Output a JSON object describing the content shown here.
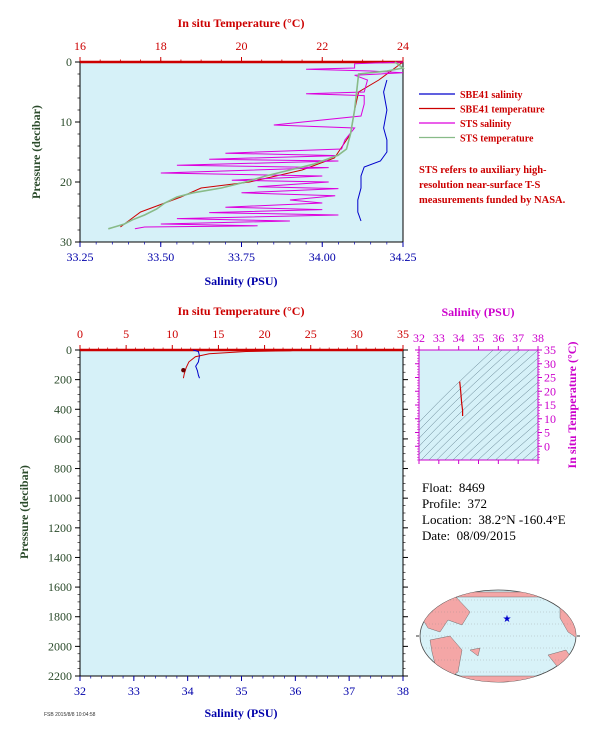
{
  "chart_data": [
    {
      "type": "line",
      "panel": "upper-profile",
      "title": "",
      "xlabel_top": "In situ Temperature (°C)",
      "xlabel_bottom": "Salinity (PSU)",
      "ylabel": "Pressure (decibar)",
      "temp_range": [
        16,
        24
      ],
      "sal_range": [
        33.25,
        34.25
      ],
      "pressure_range": [
        0,
        30
      ],
      "temp_ticks": [
        "16",
        "18",
        "20",
        "22",
        "24"
      ],
      "sal_ticks": [
        "33.25",
        "33.50",
        "33.75",
        "34.00",
        "34.25"
      ],
      "pressure_ticks": [
        "0",
        "10",
        "20",
        "30"
      ],
      "series": [
        {
          "name": "SBE41 salinity",
          "color": "#0000cc",
          "axis": "salinity",
          "points": [
            [
              34.2,
              3
            ],
            [
              34.19,
              5
            ],
            [
              34.2,
              8
            ],
            [
              34.19,
              11
            ],
            [
              34.2,
              13
            ],
            [
              34.2,
              15
            ],
            [
              34.18,
              16.5
            ],
            [
              34.13,
              17.5
            ],
            [
              34.12,
              19
            ],
            [
              34.12,
              21
            ],
            [
              34.11,
              23
            ],
            [
              34.11,
              25
            ],
            [
              34.12,
              26.5
            ]
          ]
        },
        {
          "name": "SBE41 temperature",
          "color": "#cc0000",
          "axis": "temperature",
          "points": [
            [
              24,
              0
            ],
            [
              23.4,
              3
            ],
            [
              22.9,
              5
            ],
            [
              22.8,
              8
            ],
            [
              22.7,
              12
            ],
            [
              22.3,
              16
            ],
            [
              21.5,
              18
            ],
            [
              20.2,
              20
            ],
            [
              19,
              21
            ],
            [
              18.5,
              22.5
            ],
            [
              17.5,
              25
            ],
            [
              17.2,
              26.5
            ],
            [
              17,
              27.5
            ]
          ]
        },
        {
          "name": "STS salinity",
          "color": "#dd00dd",
          "axis": "salinity",
          "points": [
            [
              34.25,
              0
            ],
            [
              34.1,
              0.3
            ],
            [
              34.1,
              1
            ],
            [
              33.95,
              1.2
            ],
            [
              34.15,
              1.5
            ],
            [
              34.25,
              1.8
            ],
            [
              34.1,
              2.2
            ],
            [
              34.14,
              3
            ],
            [
              34.13,
              5
            ],
            [
              33.95,
              5.3
            ],
            [
              34.13,
              5.6
            ],
            [
              34.13,
              7
            ],
            [
              34.12,
              9
            ],
            [
              33.85,
              10.5
            ],
            [
              34.1,
              11
            ],
            [
              34.07,
              13
            ],
            [
              34.06,
              14.5
            ],
            [
              33.7,
              15.2
            ],
            [
              34.05,
              15.6
            ],
            [
              33.65,
              16.2
            ],
            [
              34.05,
              16.5
            ],
            [
              33.55,
              17.2
            ],
            [
              34.02,
              17.6
            ],
            [
              33.5,
              18.5
            ],
            [
              34.0,
              19
            ],
            [
              33.72,
              19.7
            ],
            [
              34.02,
              20
            ],
            [
              33.8,
              20.8
            ],
            [
              34.05,
              21.1
            ],
            [
              33.75,
              21.8
            ],
            [
              34.04,
              22.3
            ],
            [
              33.9,
              23
            ],
            [
              34.0,
              23.5
            ],
            [
              33.7,
              24.2
            ],
            [
              34.0,
              24.6
            ],
            [
              33.65,
              25.1
            ],
            [
              34.05,
              25.5
            ],
            [
              33.55,
              26.1
            ],
            [
              33.9,
              26.5
            ],
            [
              33.5,
              27
            ],
            [
              33.8,
              27.3
            ],
            [
              33.45,
              27.5
            ],
            [
              33.42,
              27.8
            ]
          ]
        },
        {
          "name": "STS temperature",
          "color": "#88bb88",
          "axis": "temperature",
          "points": [
            [
              23.8,
              0
            ],
            [
              24,
              1
            ],
            [
              23.6,
              1.5
            ],
            [
              22.9,
              2
            ],
            [
              22.85,
              5
            ],
            [
              22.8,
              8
            ],
            [
              22.7,
              12
            ],
            [
              22.6,
              14.5
            ],
            [
              22.4,
              15.5
            ],
            [
              21.8,
              17
            ],
            [
              21.2,
              18
            ],
            [
              20.6,
              19
            ],
            [
              20.1,
              20
            ],
            [
              19.5,
              21
            ],
            [
              18.8,
              21.8
            ],
            [
              18.4,
              22.5
            ],
            [
              18.1,
              23.5
            ],
            [
              17.9,
              24.5
            ],
            [
              17.6,
              25.5
            ],
            [
              17.3,
              26.3
            ],
            [
              17.1,
              27
            ],
            [
              16.8,
              27.6
            ],
            [
              16.7,
              27.8
            ]
          ]
        }
      ],
      "legend": [
        "SBE41 salinity",
        "SBE41 temperature",
        "STS salinity",
        "STS temperature"
      ],
      "legend_placement": "right",
      "annotation": "STS refers to auxiliary high-resolution near-surface T-S measurements funded by NASA."
    },
    {
      "type": "line",
      "panel": "lower-profile",
      "title": "",
      "xlabel_top": "In situ Temperature (°C)",
      "xlabel_bottom": "Salinity (PSU)",
      "ylabel": "Pressure (decibar)",
      "temp_range": [
        0,
        35
      ],
      "sal_range": [
        32,
        38
      ],
      "pressure_range": [
        0,
        2200
      ],
      "temp_ticks": [
        "0",
        "5",
        "10",
        "15",
        "20",
        "25",
        "30",
        "35"
      ],
      "sal_ticks": [
        "32",
        "33",
        "34",
        "35",
        "36",
        "37",
        "38"
      ],
      "pressure_ticks": [
        "0",
        "200",
        "400",
        "600",
        "800",
        "1000",
        "1200",
        "1400",
        "1600",
        "1800",
        "2000",
        "2200"
      ],
      "series": [
        {
          "name": "salinity",
          "color": "#0000cc",
          "axis": "salinity",
          "points": [
            [
              34.1,
              0
            ],
            [
              34.2,
              10
            ],
            [
              34.22,
              40
            ],
            [
              34.2,
              80
            ],
            [
              34.15,
              110
            ],
            [
              34.18,
              140
            ],
            [
              34.2,
              170
            ],
            [
              34.22,
              190
            ]
          ]
        },
        {
          "name": "temperature",
          "color": "#cc0000",
          "axis": "temperature",
          "points": [
            [
              23.5,
              0
            ],
            [
              22.8,
              5
            ],
            [
              18,
              10
            ],
            [
              14,
              25
            ],
            [
              12.5,
              45
            ],
            [
              11.8,
              80
            ],
            [
              11.5,
              120
            ],
            [
              11.3,
              160
            ],
            [
              11.2,
              190
            ]
          ]
        }
      ]
    },
    {
      "type": "scatter",
      "panel": "t-s-diagram",
      "xlabel": "Salinity (PSU)",
      "ylabel": "In situ Temperature (°C)",
      "sal_range": [
        32,
        38
      ],
      "temp_range": [
        -5,
        35
      ],
      "sal_ticks": [
        "32",
        "33",
        "34",
        "35",
        "36",
        "37",
        "38"
      ],
      "temp_ticks": [
        "0",
        "5",
        "10",
        "15",
        "20",
        "25",
        "30",
        "35"
      ],
      "points": [
        [
          34.05,
          23.5
        ],
        [
          34.1,
          20
        ],
        [
          34.15,
          16
        ],
        [
          34.2,
          13
        ],
        [
          34.2,
          11
        ]
      ],
      "color": "#cc0000"
    }
  ],
  "float_info": {
    "float_label": "Float:",
    "float_value": "8469",
    "profile_label": "Profile:",
    "profile_value": "372",
    "location_label": "Location:",
    "location_value": "38.2°N  -160.4°E",
    "date_label": "Date:",
    "date_value": "08/09/2015"
  },
  "map": {
    "marker": "★",
    "marker_color": "#0000cc",
    "land_color": "#f4a6a6",
    "ocean_color": "#d8f2f8"
  },
  "stamp": "FSB 2015/8/8 10:04:58"
}
